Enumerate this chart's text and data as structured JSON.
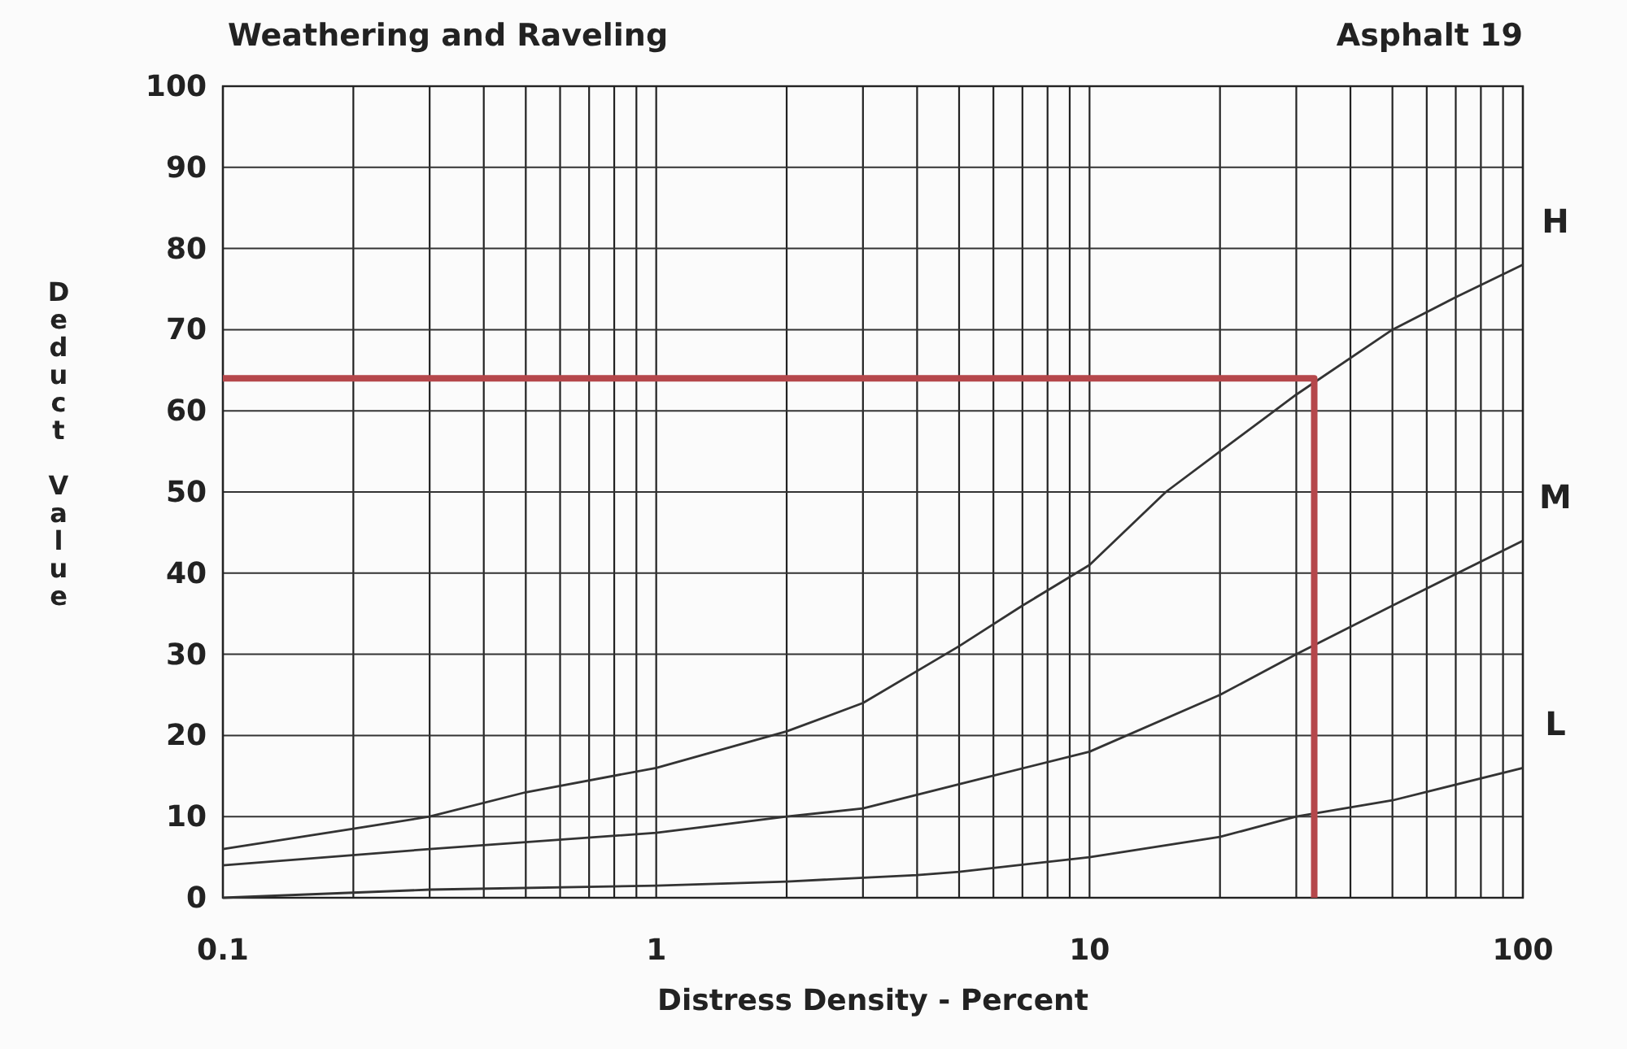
{
  "chart_data": {
    "type": "line",
    "title": "Weathering and Raveling",
    "xlabel": "Distress Density - Percent",
    "ylabel": "Deduct Value",
    "annotations": [
      "Asphalt 19"
    ],
    "log": "x",
    "grid": true,
    "marker": "none",
    "line_style": "solid",
    "xlim": [
      0.1,
      100
    ],
    "ylim": [
      0,
      100
    ],
    "xticks": [
      0.1,
      {
        "value": 0.2,
        "label": null
      },
      {
        "value": 0.3,
        "label": null
      },
      {
        "value": 0.4,
        "label": null
      },
      {
        "value": 0.5,
        "label": null
      },
      {
        "value": 0.6,
        "label": null
      },
      {
        "value": 0.7,
        "label": null
      },
      {
        "value": 0.8,
        "label": null
      },
      {
        "value": 0.9,
        "label": null
      },
      1,
      {
        "value": 2,
        "label": null
      },
      {
        "value": 3,
        "label": null
      },
      {
        "value": 4,
        "label": null
      },
      {
        "value": 5,
        "label": null
      },
      {
        "value": 6,
        "label": null
      },
      {
        "value": 7,
        "label": null
      },
      {
        "value": 8,
        "label": null
      },
      {
        "value": 9,
        "label": null
      },
      10,
      {
        "value": 20,
        "label": null
      },
      {
        "value": 30,
        "label": null
      },
      {
        "value": 40,
        "label": null
      },
      {
        "value": 50,
        "label": null
      },
      {
        "value": 60,
        "label": null
      },
      {
        "value": 70,
        "label": null
      },
      {
        "value": 80,
        "label": null
      },
      {
        "value": 90,
        "label": null
      },
      100
    ],
    "yticks": [
      0,
      10,
      20,
      30,
      40,
      50,
      60,
      70,
      80,
      90,
      100
    ],
    "series": [
      {
        "name": "H",
        "color": "#333333",
        "x": [
          0.1,
          0.2,
          0.3,
          0.5,
          1,
          2,
          3,
          5,
          7,
          10,
          15,
          20,
          30,
          50,
          70,
          100
        ],
        "values": [
          6,
          8.5,
          10,
          13,
          16,
          20.5,
          24,
          31,
          36,
          41,
          50,
          55,
          62,
          70,
          74,
          78
        ]
      },
      {
        "name": "M",
        "color": "#333333",
        "x": [
          0.1,
          0.3,
          1,
          2,
          3,
          5,
          10,
          20,
          30,
          50,
          100
        ],
        "values": [
          4,
          6,
          8,
          10,
          11,
          14,
          18,
          25,
          30,
          36,
          44
        ]
      },
      {
        "name": "L",
        "color": "#333333",
        "x": [
          0.1,
          0.3,
          1,
          2,
          4,
          5,
          10,
          20,
          30,
          50,
          100
        ],
        "values": [
          0,
          1,
          1.5,
          2,
          2.8,
          3.2,
          5,
          7.5,
          10,
          12,
          16
        ]
      },
      {
        "color": "#b5474b",
        "x": [
          0.1,
          33,
          33
        ],
        "values": [
          64,
          64,
          0
        ]
      }
    ]
  }
}
